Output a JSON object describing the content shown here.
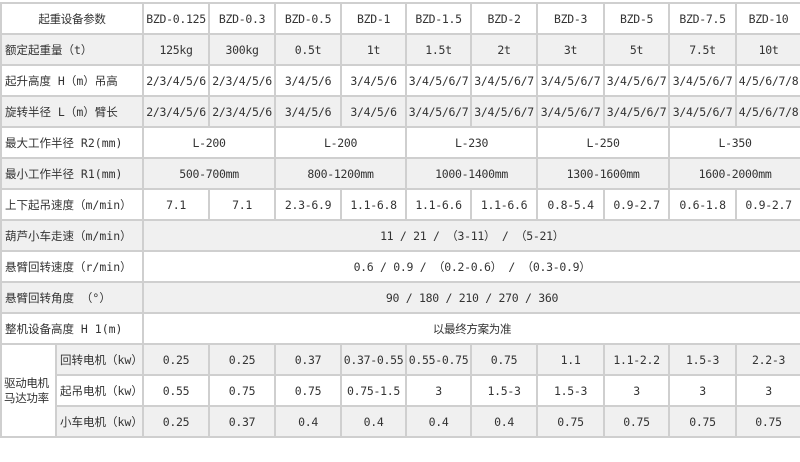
{
  "table": {
    "header": {
      "label": "起重设备参数",
      "models": [
        "BZD-0.125",
        "BZD-0.3",
        "BZD-0.5",
        "BZD-1",
        "BZD-1.5",
        "BZD-2",
        "BZD-3",
        "BZD-5",
        "BZD-7.5",
        "BZD-10"
      ]
    },
    "rows": [
      {
        "label": "额定起重量（t）",
        "cells": [
          {
            "text": "125kg",
            "span": 1
          },
          {
            "text": "300kg",
            "span": 1
          },
          {
            "text": "0.5t",
            "span": 1
          },
          {
            "text": "1t",
            "span": 1
          },
          {
            "text": "1.5t",
            "span": 1
          },
          {
            "text": "2t",
            "span": 1
          },
          {
            "text": "3t",
            "span": 1
          },
          {
            "text": "5t",
            "span": 1
          },
          {
            "text": "7.5t",
            "span": 1
          },
          {
            "text": "10t",
            "span": 1
          }
        ]
      },
      {
        "label": "起升高度 H（m）吊高",
        "cells": [
          {
            "text": "2/3/4/5/6",
            "span": 1
          },
          {
            "text": "2/3/4/5/6",
            "span": 1
          },
          {
            "text": "3/4/5/6",
            "span": 1
          },
          {
            "text": "3/4/5/6",
            "span": 1
          },
          {
            "text": "3/4/5/6/7",
            "span": 1
          },
          {
            "text": "3/4/5/6/7",
            "span": 1
          },
          {
            "text": "3/4/5/6/7",
            "span": 1
          },
          {
            "text": "3/4/5/6/7",
            "span": 1
          },
          {
            "text": "3/4/5/6/7",
            "span": 1
          },
          {
            "text": "4/5/6/7/8",
            "span": 1
          }
        ]
      },
      {
        "label": "旋转半径 L（m）臂长",
        "cells": [
          {
            "text": "2/3/4/5/6",
            "span": 1
          },
          {
            "text": "2/3/4/5/6",
            "span": 1
          },
          {
            "text": "3/4/5/6",
            "span": 1
          },
          {
            "text": "3/4/5/6",
            "span": 1
          },
          {
            "text": "3/4/5/6/7",
            "span": 1
          },
          {
            "text": "3/4/5/6/7",
            "span": 1
          },
          {
            "text": "3/4/5/6/7",
            "span": 1
          },
          {
            "text": "3/4/5/6/7",
            "span": 1
          },
          {
            "text": "3/4/5/6/7",
            "span": 1
          },
          {
            "text": "4/5/6/7/8",
            "span": 1
          }
        ]
      },
      {
        "label": "最大工作半径 R2(mm)",
        "cells": [
          {
            "text": "L-200",
            "span": 2
          },
          {
            "text": "L-200",
            "span": 2
          },
          {
            "text": "L-230",
            "span": 2
          },
          {
            "text": "L-250",
            "span": 2
          },
          {
            "text": "L-350",
            "span": 2
          }
        ]
      },
      {
        "label": "最小工作半径 R1(mm)",
        "cells": [
          {
            "text": "500-700mm",
            "span": 2
          },
          {
            "text": "800-1200mm",
            "span": 2
          },
          {
            "text": "1000-1400mm",
            "span": 2
          },
          {
            "text": "1300-1600mm",
            "span": 2
          },
          {
            "text": "1600-2000mm",
            "span": 2
          }
        ]
      },
      {
        "label": "上下起吊速度（m/min）",
        "cells": [
          {
            "text": "7.1",
            "span": 1
          },
          {
            "text": "7.1",
            "span": 1
          },
          {
            "text": "2.3-6.9",
            "span": 1
          },
          {
            "text": "1.1-6.8",
            "span": 1
          },
          {
            "text": "1.1-6.6",
            "span": 1
          },
          {
            "text": "1.1-6.6",
            "span": 1
          },
          {
            "text": "0.8-5.4",
            "span": 1
          },
          {
            "text": "0.9-2.7",
            "span": 1
          },
          {
            "text": "0.6-1.8",
            "span": 1
          },
          {
            "text": "0.9-2.7",
            "span": 1
          }
        ]
      },
      {
        "label": "葫芦小车走速（m/min）",
        "cells": [
          {
            "text": "11  /  21  /  （3-11） /  （5-21）",
            "span": 10
          }
        ]
      },
      {
        "label": "悬臂回转速度（r/min）",
        "cells": [
          {
            "text": "0.6 /  0.9  /  （0.2-0.6）  /  （0.3-0.9）",
            "span": 10
          }
        ]
      },
      {
        "label": "悬臂回转角度 （°）",
        "cells": [
          {
            "text": "90  /  180  /  210  /  270  /  360",
            "span": 10
          }
        ]
      },
      {
        "label": "整机设备高度 H 1(m)",
        "cells": [
          {
            "text": "以最终方案为准",
            "span": 10
          }
        ]
      }
    ],
    "motor_group": {
      "label": "驱动电机马达功率",
      "rows": [
        {
          "label": "回转电机（kw）",
          "cells": [
            {
              "text": "0.25",
              "span": 1
            },
            {
              "text": "0.25",
              "span": 1
            },
            {
              "text": "0.37",
              "span": 1
            },
            {
              "text": "0.37-0.55",
              "span": 1
            },
            {
              "text": "0.55-0.75",
              "span": 1
            },
            {
              "text": "0.75",
              "span": 1
            },
            {
              "text": "1.1",
              "span": 1
            },
            {
              "text": "1.1-2.2",
              "span": 1
            },
            {
              "text": "1.5-3",
              "span": 1
            },
            {
              "text": "2.2-3",
              "span": 1
            }
          ]
        },
        {
          "label": "起吊电机（kw）",
          "cells": [
            {
              "text": "0.55",
              "span": 1
            },
            {
              "text": "0.75",
              "span": 1
            },
            {
              "text": "0.75",
              "span": 1
            },
            {
              "text": "0.75-1.5",
              "span": 1
            },
            {
              "text": "3",
              "span": 1
            },
            {
              "text": "1.5-3",
              "span": 1
            },
            {
              "text": "1.5-3",
              "span": 1
            },
            {
              "text": "3",
              "span": 1
            },
            {
              "text": "3",
              "span": 1
            },
            {
              "text": "3",
              "span": 1
            }
          ]
        },
        {
          "label": "小车电机（kw）",
          "cells": [
            {
              "text": "0.25",
              "span": 1
            },
            {
              "text": "0.37",
              "span": 1
            },
            {
              "text": "0.4",
              "span": 1
            },
            {
              "text": "0.4",
              "span": 1
            },
            {
              "text": "0.4",
              "span": 1
            },
            {
              "text": "0.4",
              "span": 1
            },
            {
              "text": "0.75",
              "span": 1
            },
            {
              "text": "0.75",
              "span": 1
            },
            {
              "text": "0.75",
              "span": 1
            },
            {
              "text": "0.75",
              "span": 1
            }
          ]
        }
      ]
    }
  }
}
